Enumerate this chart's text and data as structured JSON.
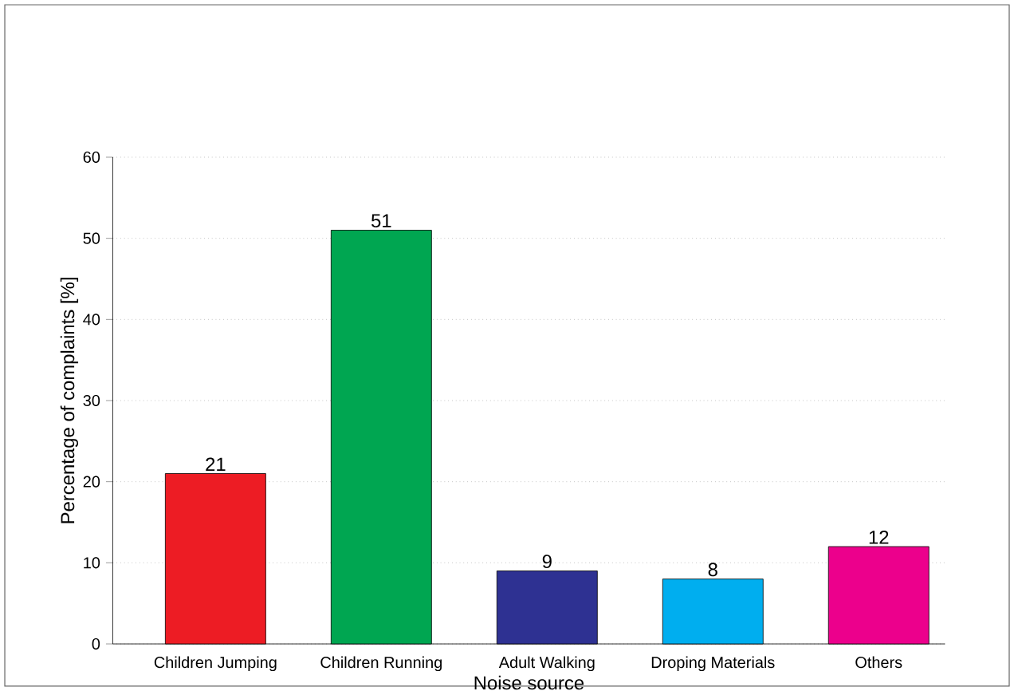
{
  "chart_data": {
    "type": "bar",
    "xlabel": "Noise source",
    "ylabel": "Percentage of complaints [%]",
    "categories": [
      "Children Jumping",
      "Children Running",
      "Adult Walking",
      "Droping Materials",
      "Others"
    ],
    "values": [
      21,
      51,
      9,
      8,
      12
    ],
    "colors": [
      "#ed1c24",
      "#00a651",
      "#2e3192",
      "#00aeef",
      "#ec008c"
    ],
    "ylim": [
      0,
      60
    ],
    "yticks": [
      0,
      10,
      20,
      30,
      40,
      50,
      60
    ],
    "grid": "y",
    "data_labels": true
  }
}
